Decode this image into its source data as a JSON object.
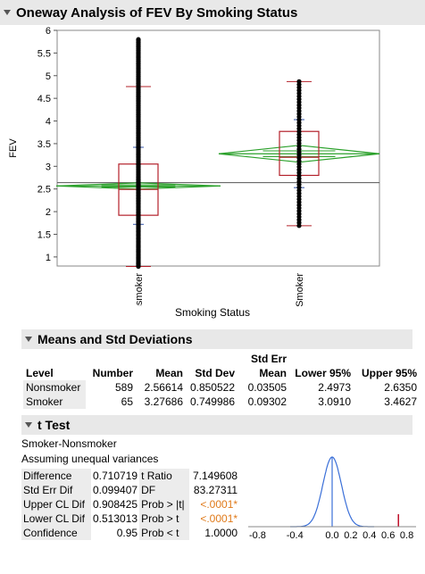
{
  "report_title": "Oneway Analysis of FEV By Smoking Status",
  "chart_data": {
    "type": "scatter",
    "ylabel": "FEV",
    "xlabel": "Smoking Status",
    "ylim": [
      0.8,
      6
    ],
    "yticks": [
      "1",
      "1.5",
      "2",
      "2.5",
      "3",
      "3.5",
      "4",
      "4.5",
      "5",
      "5.5",
      "6"
    ],
    "categories": [
      "Nonsmoker",
      "Smoker"
    ],
    "grand_mean": 2.64,
    "groups": [
      {
        "name": "Nonsmoker",
        "q1": 1.92,
        "median": 2.49,
        "q3": 3.05,
        "whisker_low": 0.79,
        "whisker_high": 4.76,
        "mean": 2.56614,
        "lower95": 2.4973,
        "upper95": 2.635,
        "std_low": 1.72,
        "std_high": 3.42,
        "points_range": [
          0.79,
          5.8
        ]
      },
      {
        "name": "Smoker",
        "q1": 2.8,
        "median": 3.2,
        "q3": 3.77,
        "whisker_low": 1.69,
        "whisker_high": 4.87,
        "mean": 3.27686,
        "lower95": 3.091,
        "upper95": 3.4627,
        "std_low": 2.53,
        "std_high": 4.03,
        "points_range": [
          1.69,
          4.87
        ]
      }
    ],
    "colors": {
      "box": "#b3202a",
      "diamond": "#2aa02a",
      "points": "#000000",
      "grand_mean": "#555555"
    }
  },
  "means": {
    "section_title": "Means and Std Deviations",
    "header_top": "Std Err",
    "columns": [
      "Level",
      "Number",
      "Mean",
      "Std Dev",
      "Mean",
      "Lower 95%",
      "Upper 95%"
    ],
    "rows": [
      [
        "Nonsmoker",
        "589",
        "2.56614",
        "0.850522",
        "0.03505",
        "2.4973",
        "2.6350"
      ],
      [
        "Smoker",
        "65",
        "3.27686",
        "0.749986",
        "0.09302",
        "3.0910",
        "3.4627"
      ]
    ]
  },
  "ttest": {
    "section_title": "t Test",
    "comparison": "Smoker-Nonsmoker",
    "assumption": "Assuming unequal variances",
    "rows": [
      {
        "label": "Difference",
        "value": "0.710719",
        "stat": "t Ratio",
        "stat_value": "7.149608"
      },
      {
        "label": "Std Err Dif",
        "value": "0.099407",
        "stat": "DF",
        "stat_value": "83.27311"
      },
      {
        "label": "Upper CL Dif",
        "value": "0.908425",
        "stat": "Prob > |t|",
        "stat_value": "<.0001*"
      },
      {
        "label": "Lower CL Dif",
        "value": "0.513013",
        "stat": "Prob > t",
        "stat_value": "<.0001*"
      },
      {
        "label": "Confidence",
        "value": "0.95",
        "stat": "Prob < t",
        "stat_value": "1.0000"
      }
    ],
    "axis_ticks": [
      "-0.8",
      "-0.4",
      "0.0",
      "0.2",
      "0.4",
      "0.6",
      "0.8"
    ],
    "axis_values": [
      -0.8,
      -0.4,
      0.0,
      0.2,
      0.4,
      0.6,
      0.8
    ],
    "observed_diff": 0.710719,
    "colors": {
      "curve": "#3a6fd8",
      "marker": "#c0102a",
      "pvalue": "#e07a1a"
    }
  }
}
